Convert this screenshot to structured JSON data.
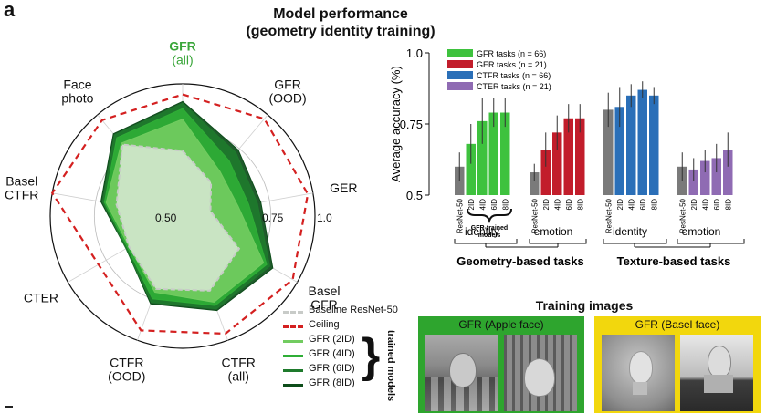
{
  "figure": {
    "panel_letter": "a",
    "title_line1": "Model performance",
    "title_line2": "(geometry identity training)"
  },
  "chart_data": [
    {
      "type": "radar",
      "axes": [
        {
          "name": "GFR (all)",
          "line1": "GFR",
          "line2": "(all)",
          "color": "#3aa63a"
        },
        {
          "name": "GFR (OOD)",
          "line1": "GFR",
          "line2": "(OOD)",
          "color": "#111111"
        },
        {
          "name": "GER",
          "line1": "GER",
          "line2": "",
          "color": "#111111"
        },
        {
          "name": "Basel GFR",
          "line1": "Basel",
          "line2": "GFR",
          "color": "#111111"
        },
        {
          "name": "CTFR (all)",
          "line1": "CTFR",
          "line2": "(all)",
          "color": "#111111"
        },
        {
          "name": "CTFR (OOD)",
          "line1": "CTFR",
          "line2": "(OOD)",
          "color": "#111111"
        },
        {
          "name": "CTER",
          "line1": "CTER",
          "line2": "",
          "color": "#111111"
        },
        {
          "name": "Basel CTFR",
          "line1": "Basel",
          "line2": "CTFR",
          "color": "#111111"
        },
        {
          "name": "Face photo",
          "line1": "Face",
          "line2": "photo",
          "color": "#111111"
        }
      ],
      "rlim": [
        0.25,
        1.0
      ],
      "ring_labels": [
        "0.50",
        "0.75",
        "1.0"
      ],
      "ring_values": [
        0.5,
        0.75,
        1.0
      ],
      "series": [
        {
          "name": "Ceiling",
          "style": "dashed",
          "color": "#d42020",
          "values": [
            0.94,
            0.97,
            0.97,
            0.97,
            0.96,
            0.94,
            0.8,
            1.0,
            0.96
          ]
        },
        {
          "name": "GFR (8ID)",
          "color": "#0d4d1a",
          "values": [
            0.9,
            0.74,
            0.7,
            0.84,
            0.82,
            0.78,
            0.62,
            0.72,
            0.86
          ]
        },
        {
          "name": "GFR (6ID)",
          "color": "#1e7a2c",
          "values": [
            0.89,
            0.72,
            0.68,
            0.82,
            0.81,
            0.77,
            0.62,
            0.71,
            0.85
          ]
        },
        {
          "name": "GFR (4ID)",
          "color": "#2fae36",
          "values": [
            0.86,
            0.66,
            0.63,
            0.8,
            0.79,
            0.75,
            0.61,
            0.7,
            0.83
          ]
        },
        {
          "name": "GFR (2ID)",
          "color": "#72cc60",
          "values": [
            0.8,
            0.58,
            0.57,
            0.78,
            0.77,
            0.71,
            0.6,
            0.69,
            0.79
          ]
        },
        {
          "name": "Baseline ResNet-50",
          "style": "dashed",
          "color": "#c8cbc8",
          "values": [
            0.62,
            0.5,
            0.41,
            0.62,
            0.7,
            0.69,
            0.6,
            0.63,
            0.78
          ]
        }
      ],
      "legend": {
        "entries": [
          "Baseline ResNet-50",
          "Ceiling",
          "GFR (2ID)",
          "GFR (4ID)",
          "GFR (6ID)",
          "GFR (8ID)"
        ],
        "colors": [
          "#c8cbc8",
          "#d42020",
          "#72cc60",
          "#2fae36",
          "#1e7a2c",
          "#0d4d1a"
        ],
        "dashed": [
          true,
          true,
          false,
          false,
          false,
          false
        ],
        "group_label": "trained models"
      }
    },
    {
      "type": "bar",
      "ylabel": "Average accuracy (%)",
      "ylim": [
        0.5,
        1.0
      ],
      "yticks": [
        0.5,
        0.75,
        1.0
      ],
      "ytick_labels": [
        "0.5",
        "0.75",
        "1.0"
      ],
      "legend": [
        {
          "name": "GFR tasks (n = 66)",
          "color": "#3ec23e"
        },
        {
          "name": "GER tasks (n = 21)",
          "color": "#c21d2b"
        },
        {
          "name": "CTFR tasks (n = 66)",
          "color": "#2a6fb8"
        },
        {
          "name": "CTER tasks (n = 21)",
          "color": "#8f6bb3"
        }
      ],
      "categories": [
        "ResNet-50",
        "2ID",
        "4ID",
        "6ID",
        "8ID"
      ],
      "groups": [
        {
          "name": "GFR",
          "base_color": "#7a7a7a",
          "color": "#3ec23e",
          "values": [
            0.6,
            0.68,
            0.76,
            0.79,
            0.79
          ],
          "errors": [
            0.05,
            0.07,
            0.08,
            0.05,
            0.05
          ]
        },
        {
          "name": "GER",
          "base_color": "#7a7a7a",
          "color": "#c21d2b",
          "values": [
            0.58,
            0.66,
            0.72,
            0.77,
            0.77
          ],
          "errors": [
            0.03,
            0.06,
            0.06,
            0.05,
            0.05
          ]
        },
        {
          "name": "CTFR",
          "base_color": "#7a7a7a",
          "color": "#2a6fb8",
          "values": [
            0.8,
            0.81,
            0.85,
            0.87,
            0.85
          ],
          "errors": [
            0.06,
            0.07,
            0.04,
            0.03,
            0.03
          ]
        },
        {
          "name": "CTER",
          "base_color": "#7a7a7a",
          "color": "#8f6bb3",
          "values": [
            0.6,
            0.59,
            0.62,
            0.63,
            0.66
          ],
          "errors": [
            0.05,
            0.04,
            0.04,
            0.05,
            0.06
          ]
        }
      ],
      "sublabels": [
        "identity",
        "emotion",
        "identity",
        "emotion"
      ],
      "task_groups": [
        "Geometry-based tasks",
        "Texture-based tasks"
      ],
      "annotation": {
        "line1": "GFR-trained",
        "line2": "models"
      }
    }
  ],
  "training": {
    "title": "Training images",
    "apple_label": "GFR (Apple face)",
    "basel_label": "GFR (Basel face)",
    "apple_bg": "#2ea52e",
    "basel_bg": "#f2d70d"
  }
}
